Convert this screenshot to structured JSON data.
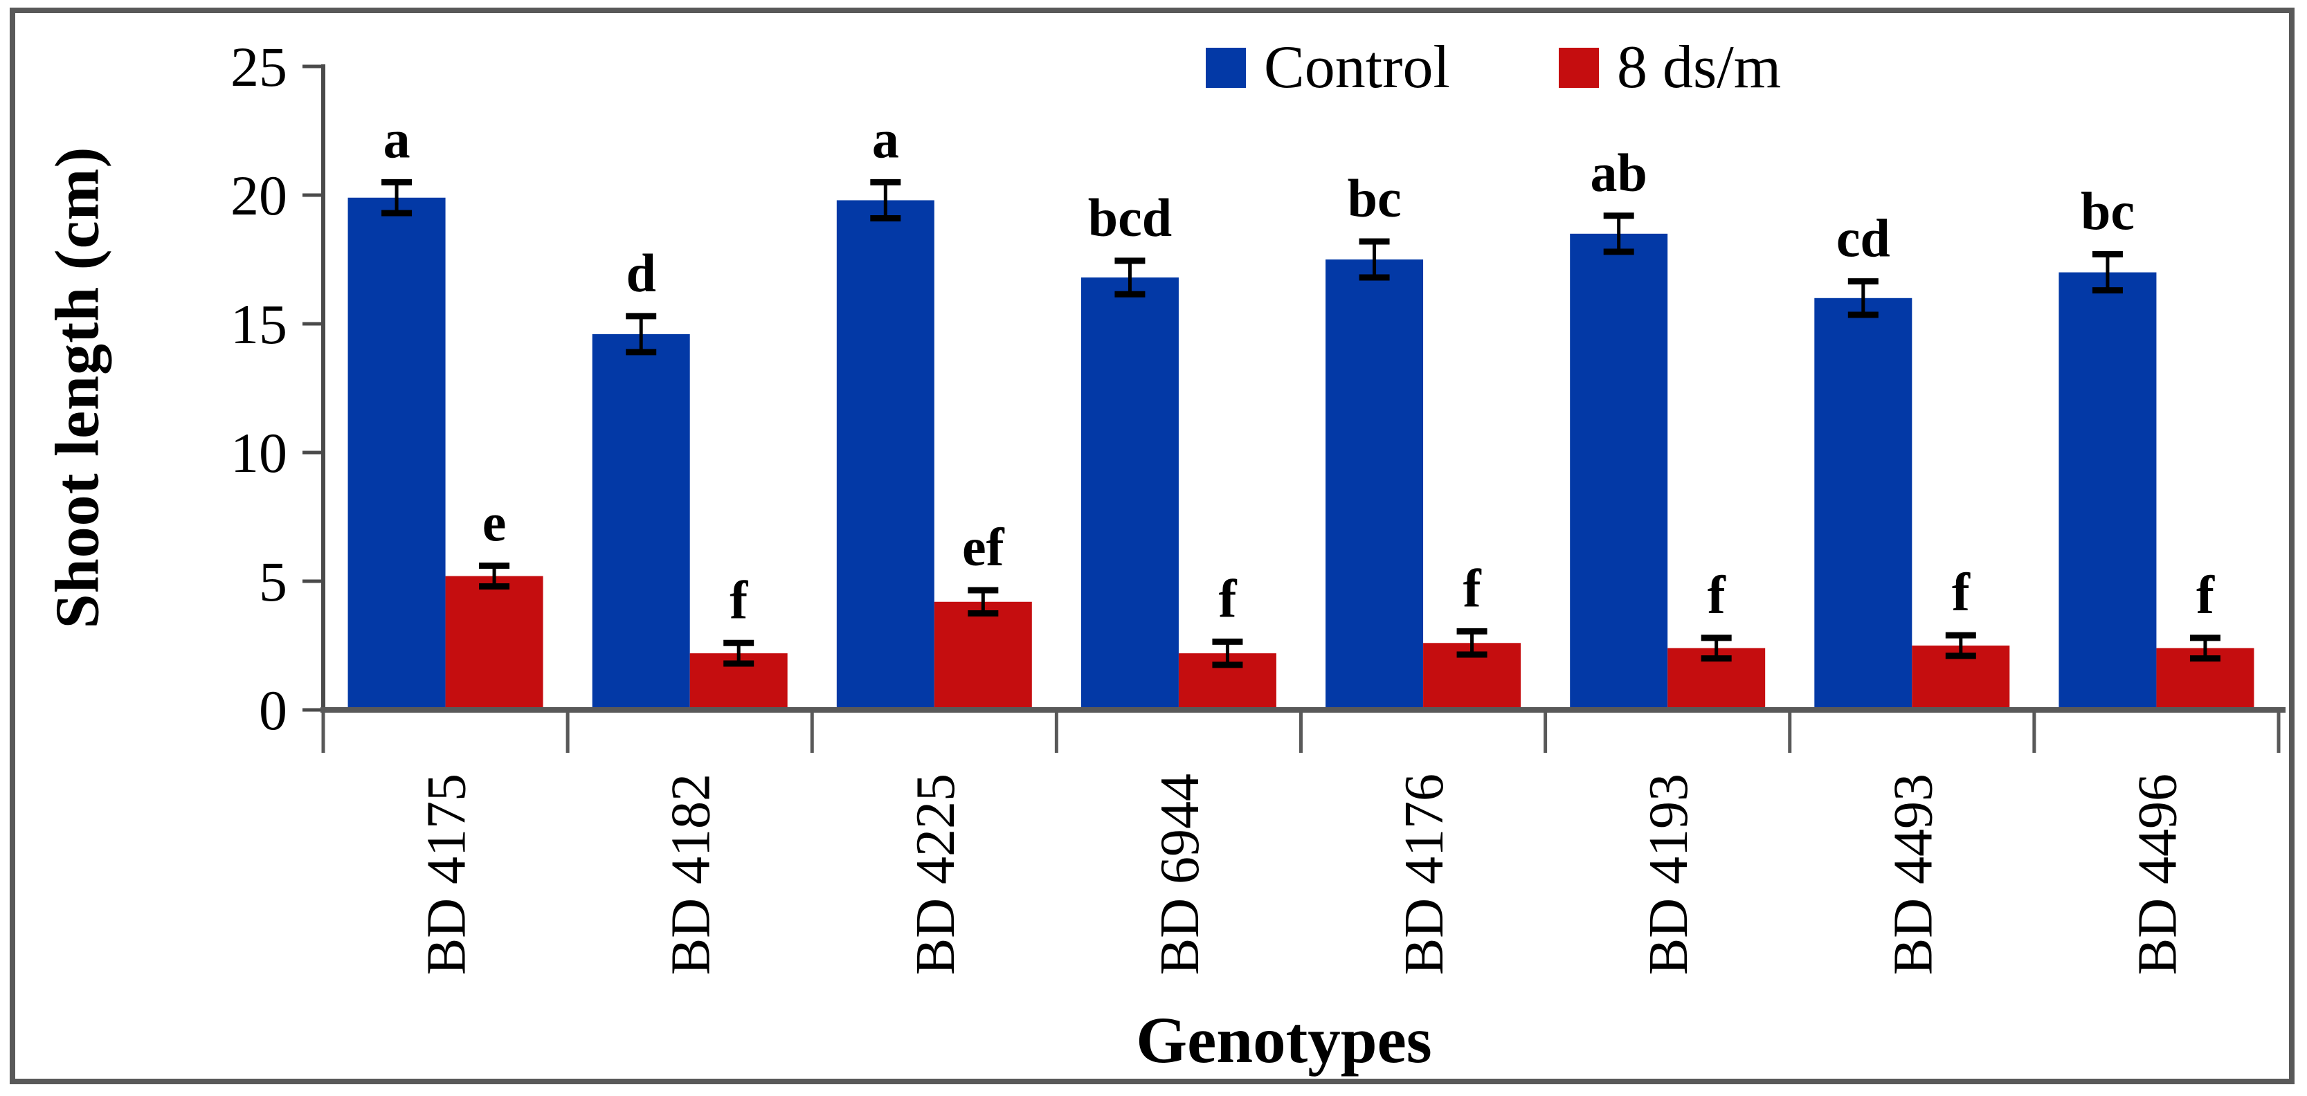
{
  "frame": {
    "border_color": "#595959",
    "background": "#ffffff"
  },
  "chart_data": {
    "type": "bar",
    "title": "",
    "xlabel": "Genotypes",
    "ylabel": "Shoot length (cm)",
    "categories": [
      "BD 4175",
      "BD 4182",
      "BD 4225",
      "BD 6944",
      "BD 4176",
      "BD 4193",
      "BD 4493",
      "BD 4496"
    ],
    "series": [
      {
        "name": "Control",
        "color": "#0339a6",
        "values": [
          19.9,
          14.6,
          19.8,
          16.8,
          17.5,
          18.5,
          16.0,
          17.0
        ],
        "errors": [
          0.6,
          0.7,
          0.7,
          0.65,
          0.7,
          0.7,
          0.65,
          0.7
        ],
        "letters": [
          "a",
          "d",
          "a",
          "bcd",
          "bc",
          "ab",
          "cd",
          "bc"
        ]
      },
      {
        "name": "8 ds/m",
        "color": "#c50d0f",
        "values": [
          5.2,
          2.2,
          4.2,
          2.2,
          2.6,
          2.4,
          2.5,
          2.4
        ],
        "errors": [
          0.4,
          0.4,
          0.45,
          0.45,
          0.45,
          0.4,
          0.4,
          0.4
        ],
        "letters": [
          "e",
          "f",
          "ef",
          "f",
          "f",
          "f",
          "f",
          "f"
        ]
      }
    ],
    "ylim": [
      0,
      25
    ],
    "yticks": [
      0,
      5,
      10,
      15,
      20,
      25
    ],
    "grid": false,
    "legend_position": "top-center",
    "axis_color": "#4a4a4a",
    "baseline_color": "#595959",
    "error_bar_color": "#000000",
    "text_color": "#000000"
  }
}
